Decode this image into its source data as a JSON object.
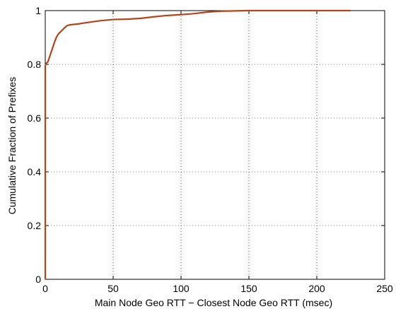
{
  "chart_data": {
    "type": "line",
    "title": "",
    "xlabel": "Main Node Geo RTT − Closest Node Geo RTT (msec)",
    "ylabel": "Cumulative Fraction of Prefixes",
    "xlim": [
      0,
      250
    ],
    "ylim": [
      0,
      1
    ],
    "xticks": [
      0,
      50,
      100,
      150,
      200,
      250
    ],
    "xtick_labels": [
      "0",
      "50",
      "100",
      "150",
      "200",
      "250"
    ],
    "yticks": [
      0,
      0.2,
      0.4,
      0.6,
      0.8,
      1
    ],
    "ytick_labels": [
      "0",
      "0.2",
      "0.4",
      "0.6",
      "0.8",
      "1"
    ],
    "grid": true,
    "line_color": "#b5441b",
    "series": [
      {
        "x": [
          0,
          0,
          0.5,
          1,
          2,
          3,
          4,
          5,
          6,
          7,
          8,
          9,
          10,
          12,
          14,
          16,
          18,
          20,
          25,
          30,
          40,
          50,
          60,
          70,
          80,
          90,
          100,
          110,
          120,
          130,
          140,
          150,
          200,
          225
        ],
        "y": [
          0,
          0.795,
          0.8,
          0.805,
          0.81,
          0.825,
          0.84,
          0.855,
          0.87,
          0.885,
          0.898,
          0.908,
          0.915,
          0.925,
          0.935,
          0.944,
          0.947,
          0.948,
          0.951,
          0.955,
          0.962,
          0.967,
          0.968,
          0.971,
          0.977,
          0.982,
          0.985,
          0.989,
          0.995,
          0.998,
          0.999,
          1.0,
          1.0,
          1.0
        ]
      }
    ]
  }
}
